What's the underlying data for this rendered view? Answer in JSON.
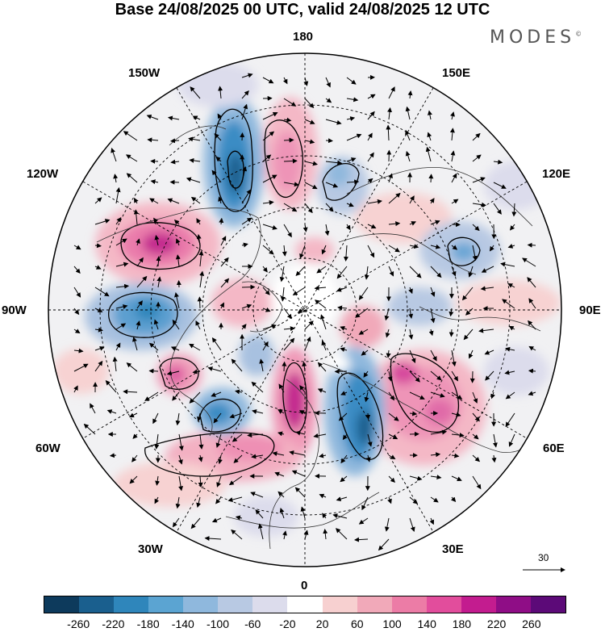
{
  "title": "Base 24/08/2025 00 UTC, valid 24/08/2025 12 UTC",
  "brand": "MODES",
  "brand_mark": "©",
  "longitude_labels": {
    "lon_180": "180",
    "lon_150e": "150E",
    "lon_120e": "120E",
    "lon_90e": "90E",
    "lon_60e": "60E",
    "lon_30e": "30E",
    "lon_0": "0",
    "lon_30w": "30W",
    "lon_60w": "60W",
    "lon_90w": "90W",
    "lon_120w": "120W",
    "lon_150w": "150W"
  },
  "reference_vector_value": "30",
  "colorbar": {
    "colors": [
      "#0d3a5c",
      "#1a5f8e",
      "#2f86bb",
      "#5ba4d2",
      "#8fb8dd",
      "#b8c9e3",
      "#dcdcec",
      "#ffffff",
      "#f7d0d0",
      "#f1a9b9",
      "#ec7ca6",
      "#e24d9c",
      "#c31c8f",
      "#8f0d86",
      "#5c0a78"
    ],
    "tick_labels": [
      "-260",
      "-220",
      "-180",
      "-140",
      "-100",
      "-60",
      "-20",
      "20",
      "60",
      "100",
      "140",
      "180",
      "220",
      "260"
    ]
  }
}
